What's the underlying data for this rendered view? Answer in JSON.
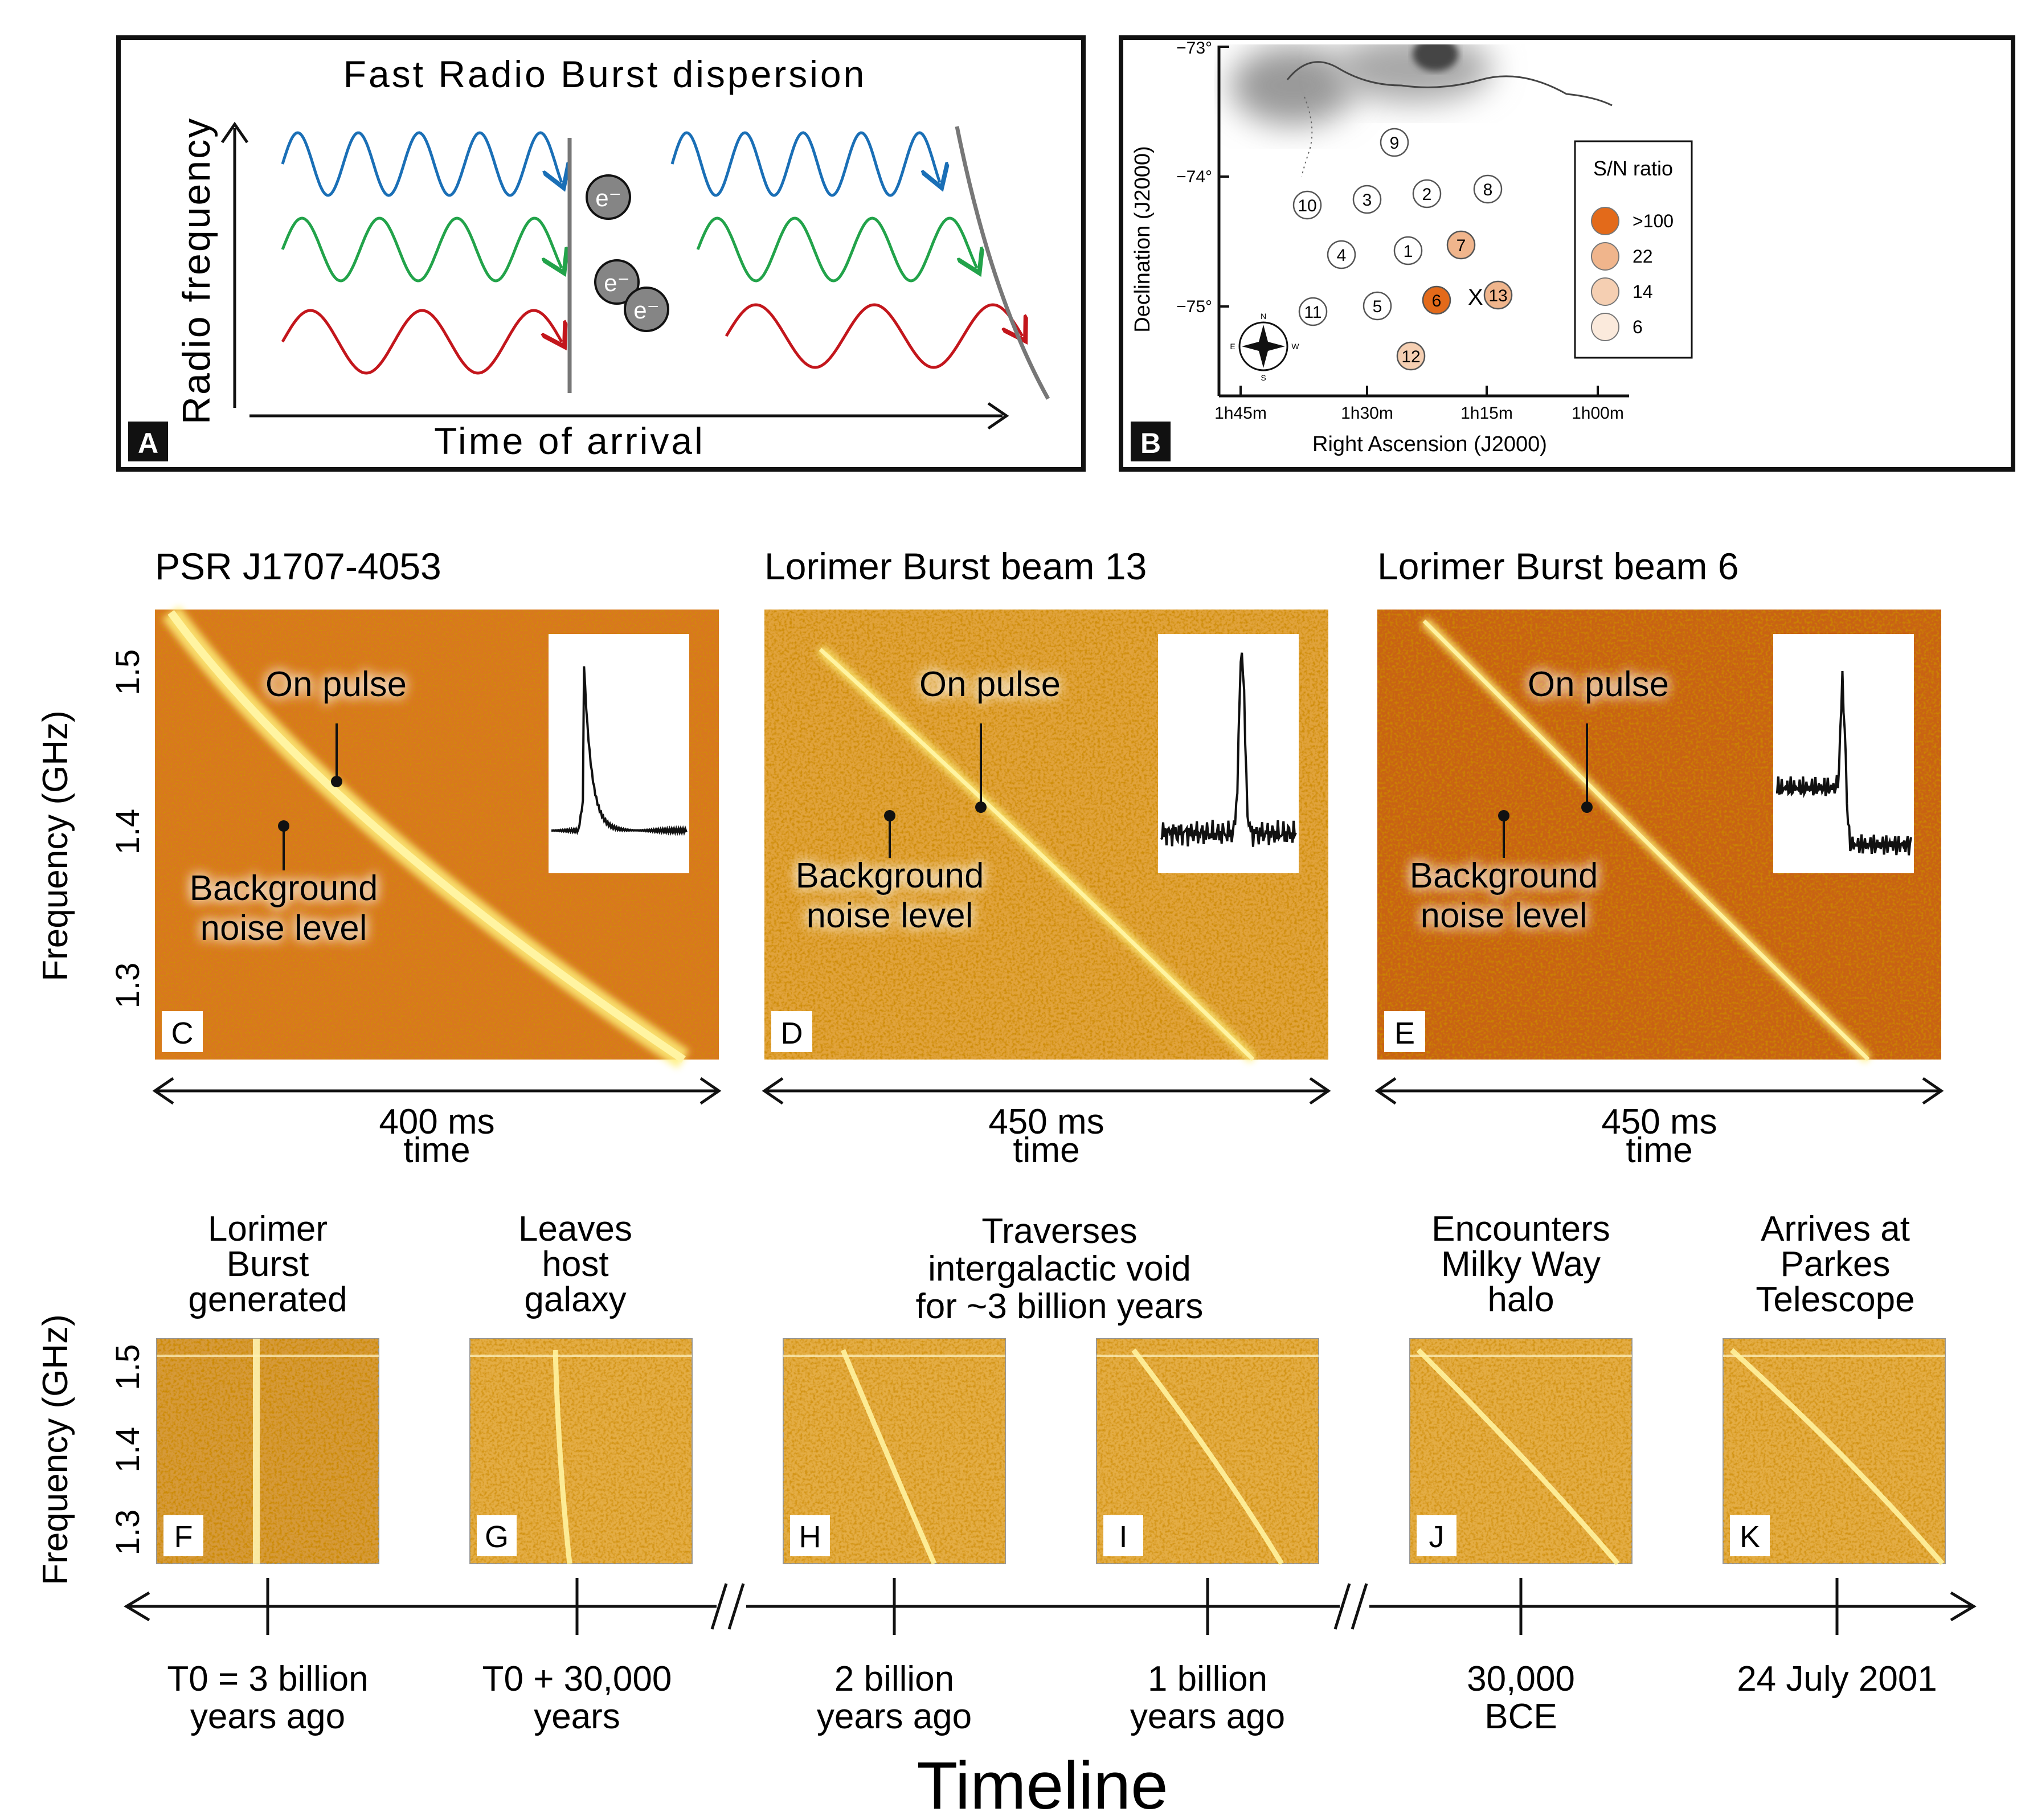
{
  "panelA": {
    "title": "Fast Radio Burst dispersion",
    "y_axis": "Radio frequency",
    "x_axis": "Time of arrival",
    "electron": "e⁻",
    "letter": "A",
    "colors": {
      "blue": "#1a6fb6",
      "green": "#22a34a",
      "red": "#c3161c"
    }
  },
  "panelB": {
    "letter": "B",
    "x_axis": "Right Ascension (J2000)",
    "y_axis": "Declination (J2000)",
    "dec_ticks": [
      "−73°",
      "−74°",
      "−75°"
    ],
    "ra_ticks": [
      "1h45m",
      "1h30m",
      "1h15m",
      "1h00m"
    ],
    "legend_title": "S/N ratio",
    "legend": [
      {
        "label": ">100",
        "color": "#e36a1a"
      },
      {
        "label": "22",
        "color": "#f0b58c"
      },
      {
        "label": "14",
        "color": "#f5cfb2"
      },
      {
        "label": "6",
        "color": "#fbeadc"
      }
    ],
    "beams": [
      "1",
      "2",
      "3",
      "4",
      "5",
      "6",
      "7",
      "8",
      "9",
      "10",
      "11",
      "12",
      "13"
    ],
    "beam_highlight_mark": "X",
    "compass": {
      "n": "N",
      "s": "S",
      "e": "E",
      "w": "W"
    }
  },
  "waterfalls": [
    {
      "title": "PSR J1707-4053",
      "letter": "C",
      "on_pulse": "On pulse",
      "noise_l1": "Background",
      "noise_l2": "noise level",
      "duration": "400 ms",
      "time": "time"
    },
    {
      "title": "Lorimer Burst beam 13",
      "letter": "D",
      "on_pulse": "On pulse",
      "noise_l1": "Background",
      "noise_l2": "noise level",
      "duration": "450 ms",
      "time": "time"
    },
    {
      "title": "Lorimer Burst beam 6",
      "letter": "E",
      "on_pulse": "On pulse",
      "noise_l1": "Background",
      "noise_l2": "noise level",
      "duration": "450 ms",
      "time": "time"
    }
  ],
  "freq_axis": {
    "label": "Frequency (GHz)",
    "ticks": [
      "1.5",
      "1.4",
      "1.3"
    ]
  },
  "timeline": {
    "title": "Timeline",
    "stages": [
      {
        "letter": "F",
        "l1": "Lorimer",
        "l2": "Burst",
        "l3": "generated",
        "t1": "T0 = 3 billion",
        "t2": "years ago"
      },
      {
        "letter": "G",
        "l1": "Leaves",
        "l2": "host",
        "l3": "galaxy",
        "t1": "T0 + 30,000",
        "t2": "years"
      },
      {
        "letter": "H",
        "l1": "",
        "l2": "",
        "l3": "",
        "t1": "2 billion",
        "t2": "years ago"
      },
      {
        "letter": "I",
        "l1": "",
        "l2": "",
        "l3": "",
        "t1": "1 billion",
        "t2": "years ago"
      },
      {
        "letter": "J",
        "l1": "Encounters",
        "l2": "Milky Way",
        "l3": "halo",
        "t1": "30,000",
        "t2": "BCE"
      },
      {
        "letter": "K",
        "l1": "Arrives at",
        "l2": "Parkes",
        "l3": "Telescope",
        "t1": "24 July 2001",
        "t2": ""
      }
    ],
    "void_l1": "Traverses",
    "void_l2": "intergalactic void",
    "void_l3": "for ~3 billion years"
  }
}
